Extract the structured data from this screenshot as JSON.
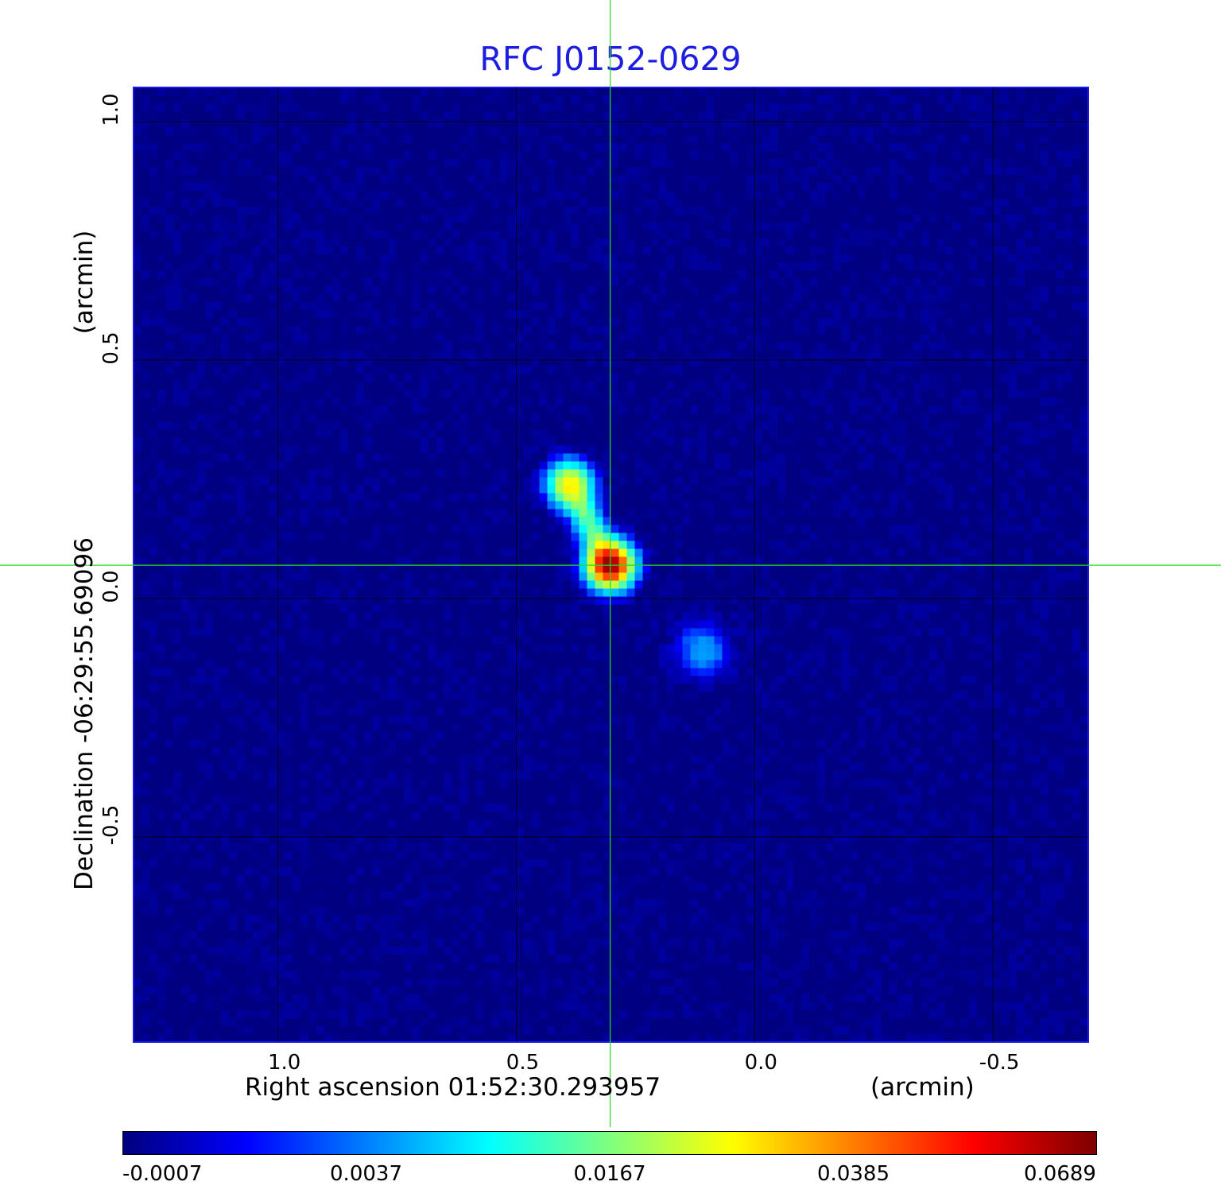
{
  "chart_data": {
    "type": "heatmap",
    "title": "RFC J0152-0629",
    "xlabel": "Right ascension  01:52:30.293957",
    "xunit": "(arcmin)",
    "ylabel": "Declination  -06:29:55.69096",
    "yunit": "(arcmin)",
    "xlim": [
      1.303,
      -0.7
    ],
    "ylim": [
      -0.93,
      1.072
    ],
    "x_ticks": [
      {
        "value": 1.0,
        "label": "1.0"
      },
      {
        "value": 0.5,
        "label": "0.5"
      },
      {
        "value": 0.0,
        "label": "0.0"
      },
      {
        "value": -0.5,
        "label": "-0.5"
      }
    ],
    "y_ticks": [
      {
        "value": 1.0,
        "label": "1.0"
      },
      {
        "value": 0.5,
        "label": "0.5"
      },
      {
        "value": 0.0,
        "label": "0.0"
      },
      {
        "value": -0.5,
        "label": "-0.5"
      }
    ],
    "grid": true,
    "crosshair": {
      "x": 0.303,
      "y": 0.07
    },
    "colormap": "jet",
    "colorbar": {
      "ticks": [
        "-0.0007",
        "0.0037",
        "0.0167",
        "0.0385",
        "0.0689"
      ],
      "min": -0.0007,
      "max": 0.0689
    },
    "sources": [
      {
        "x": 0.303,
        "y": 0.07,
        "peak": 0.0689
      },
      {
        "x": 0.388,
        "y": 0.24,
        "peak": 0.03
      },
      {
        "x": 0.11,
        "y": -0.11,
        "peak": 0.006
      }
    ],
    "background_level": -0.0007
  }
}
